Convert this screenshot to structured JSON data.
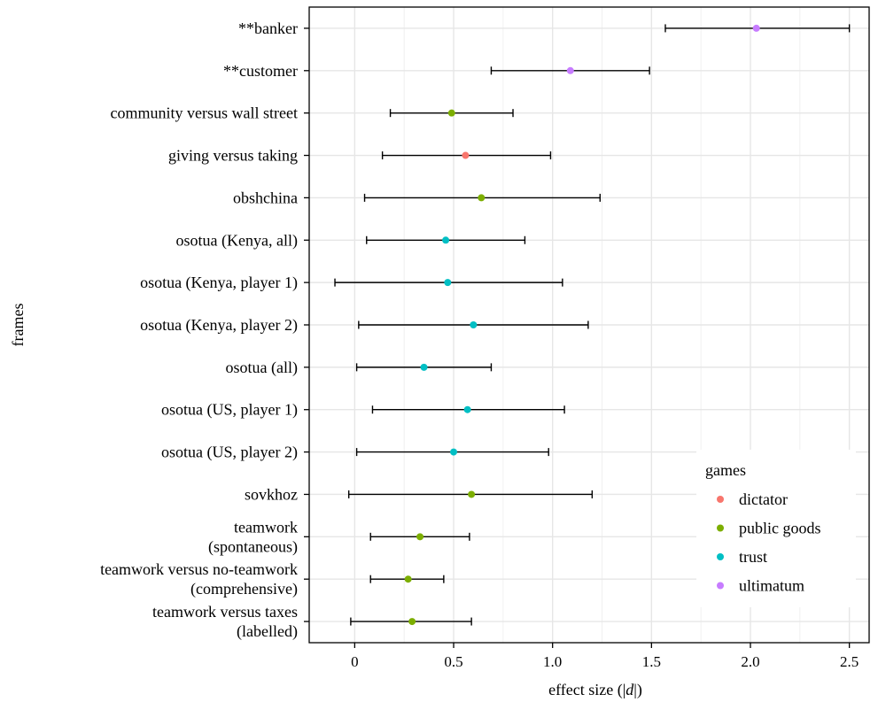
{
  "chart_data": {
    "type": "scatter",
    "xlabel_parts": [
      "effect size (|",
      "d",
      "|)"
    ],
    "ylabel": "frames",
    "xlim": [
      -0.23,
      2.6
    ],
    "x_ticks": [
      0,
      0.5,
      1.0,
      1.5,
      2.0,
      2.5
    ],
    "x_tick_labels": [
      "0",
      "0.5",
      "1.0",
      "1.5",
      "2.0",
      "2.5"
    ],
    "grid": true,
    "legend": {
      "title": "games",
      "placement": "bottom-right",
      "entries": [
        {
          "name": "dictator",
          "color": "#F8766D"
        },
        {
          "name": "public goods",
          "color": "#7CAE00"
        },
        {
          "name": "trust",
          "color": "#00BFC4"
        },
        {
          "name": "ultimatum",
          "color": "#C77CFF"
        }
      ]
    },
    "points": [
      {
        "label": [
          "**banker"
        ],
        "game": "ultimatum",
        "value": 2.03,
        "lower": 1.57,
        "upper": 2.5
      },
      {
        "label": [
          "**customer"
        ],
        "game": "ultimatum",
        "value": 1.09,
        "lower": 0.69,
        "upper": 1.49
      },
      {
        "label": [
          "community versus wall street"
        ],
        "game": "public goods",
        "value": 0.49,
        "lower": 0.18,
        "upper": 0.8
      },
      {
        "label": [
          "giving versus taking"
        ],
        "game": "dictator",
        "value": 0.56,
        "lower": 0.14,
        "upper": 0.99
      },
      {
        "label": [
          "obshchina"
        ],
        "game": "public goods",
        "value": 0.64,
        "lower": 0.05,
        "upper": 1.24
      },
      {
        "label": [
          "osotua (Kenya, all)"
        ],
        "game": "trust",
        "value": 0.46,
        "lower": 0.06,
        "upper": 0.86
      },
      {
        "label": [
          "osotua (Kenya, player 1)"
        ],
        "game": "trust",
        "value": 0.47,
        "lower": -0.1,
        "upper": 1.05
      },
      {
        "label": [
          "osotua (Kenya, player 2)"
        ],
        "game": "trust",
        "value": 0.6,
        "lower": 0.02,
        "upper": 1.18
      },
      {
        "label": [
          "osotua (all)"
        ],
        "game": "trust",
        "value": 0.35,
        "lower": 0.01,
        "upper": 0.69
      },
      {
        "label": [
          "osotua (US, player 1)"
        ],
        "game": "trust",
        "value": 0.57,
        "lower": 0.09,
        "upper": 1.06
      },
      {
        "label": [
          "osotua (US, player 2)"
        ],
        "game": "trust",
        "value": 0.5,
        "lower": 0.01,
        "upper": 0.98
      },
      {
        "label": [
          "sovkhoz"
        ],
        "game": "public goods",
        "value": 0.59,
        "lower": -0.03,
        "upper": 1.2
      },
      {
        "label": [
          "teamwork",
          "(spontaneous)"
        ],
        "game": "public goods",
        "value": 0.33,
        "lower": 0.08,
        "upper": 0.58
      },
      {
        "label": [
          "teamwork versus no-teamwork",
          "(comprehensive)"
        ],
        "game": "public goods",
        "value": 0.27,
        "lower": 0.08,
        "upper": 0.45
      },
      {
        "label": [
          "teamwork versus taxes",
          "(labelled)"
        ],
        "game": "public goods",
        "value": 0.29,
        "lower": -0.02,
        "upper": 0.59
      }
    ]
  }
}
